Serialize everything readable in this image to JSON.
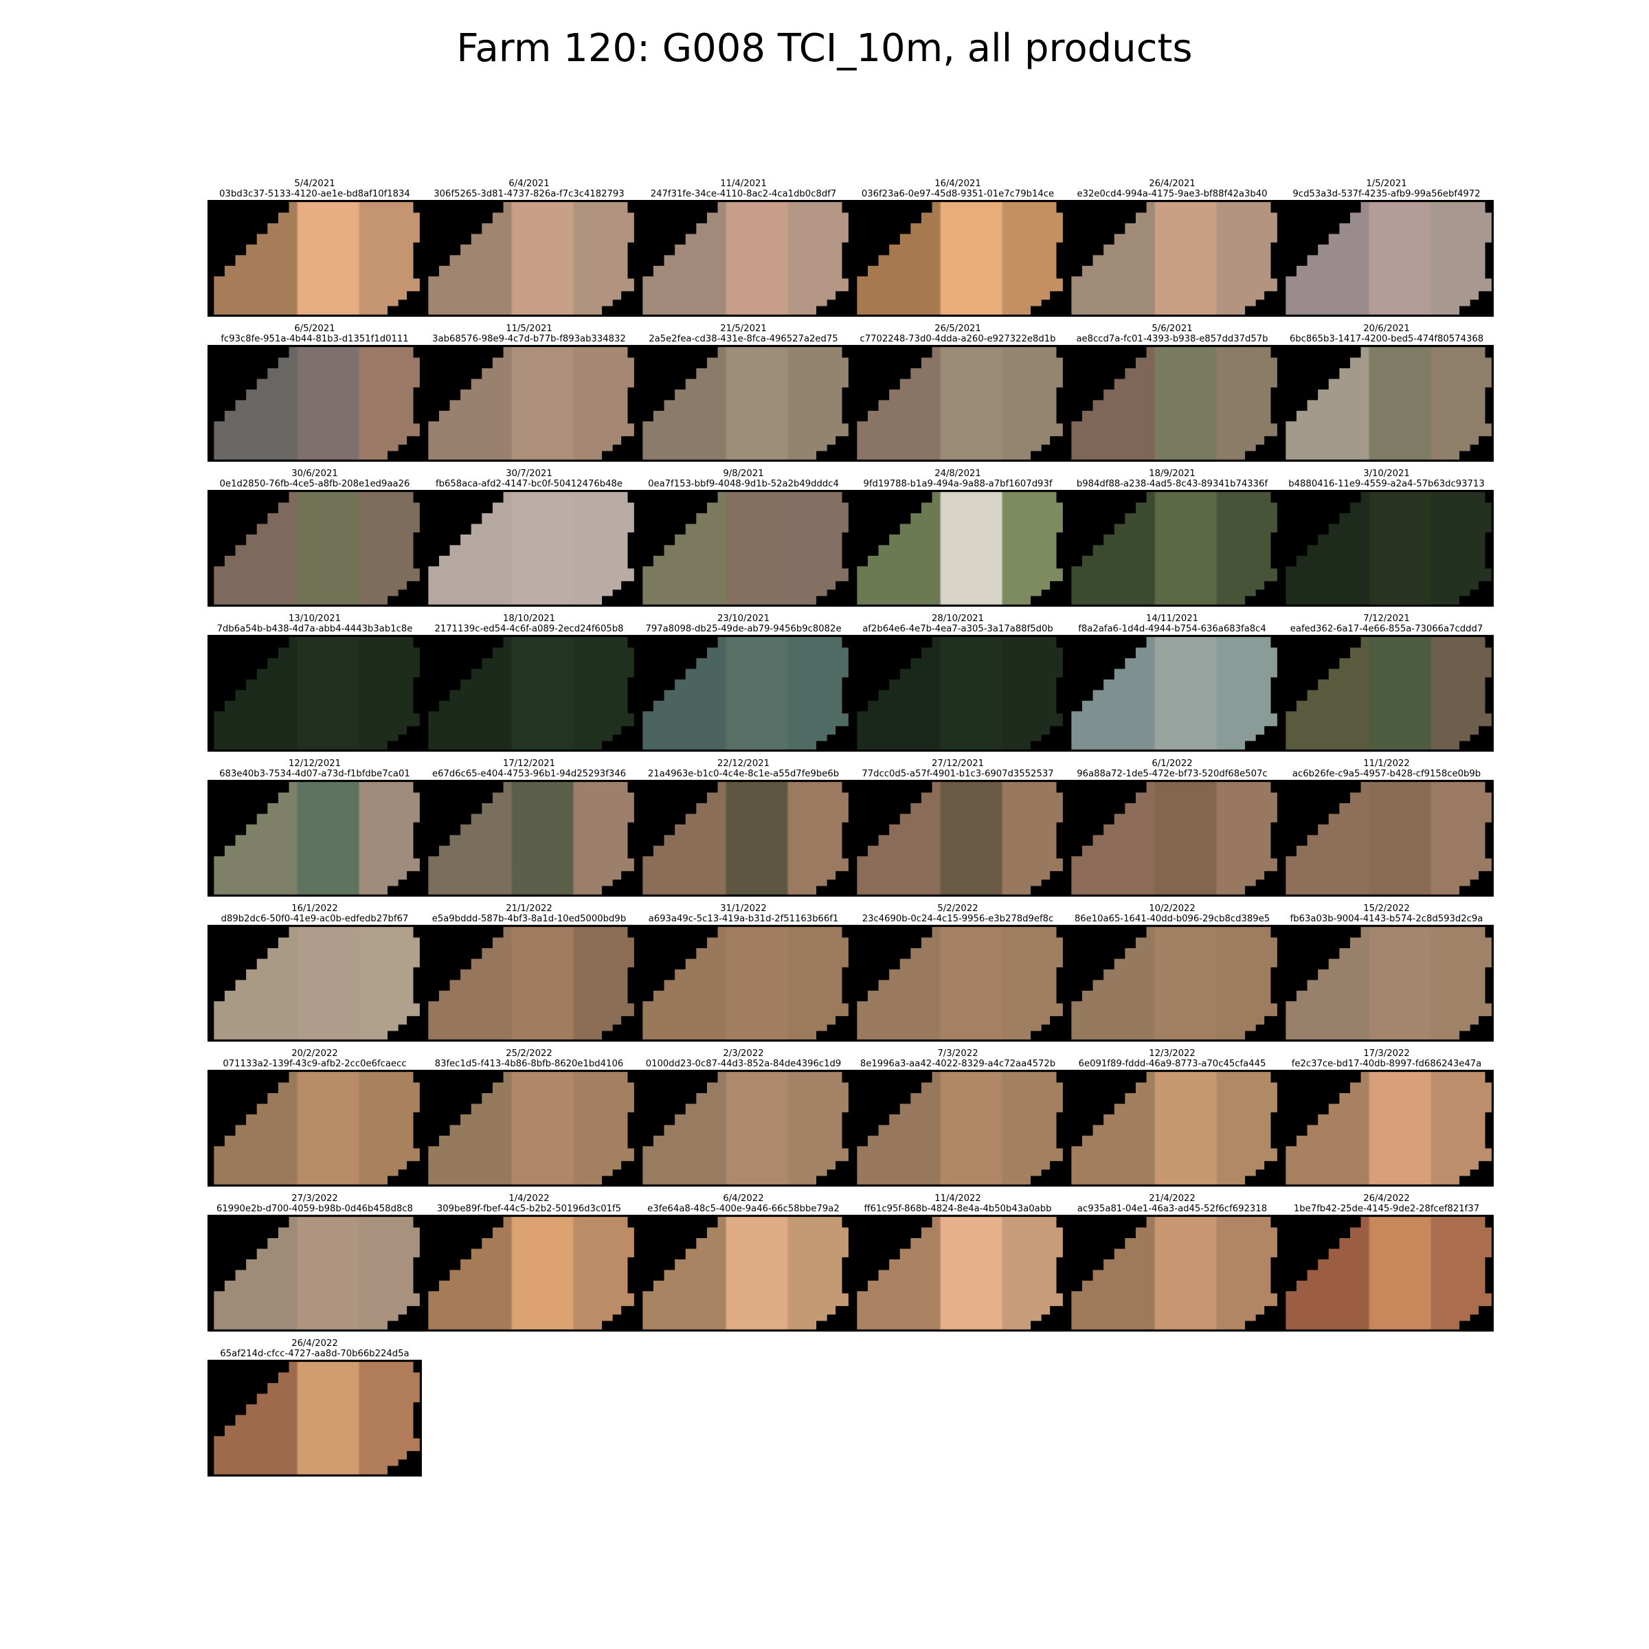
{
  "title": "Farm 120: G008 TCI_10m, all products",
  "panels": [
    {
      "date": "5/4/2021",
      "id": "03bd3c37-5133-4120-ae1e-bd8af10f1834",
      "colors": [
        "#a67d58",
        "#e6ae82",
        "#c49570"
      ]
    },
    {
      "date": "6/4/2021",
      "id": "306f5265-3d81-4737-826a-f7c3c4182793",
      "colors": [
        "#a08670",
        "#c8a088",
        "#b09480"
      ]
    },
    {
      "date": "11/4/2021",
      "id": "247f31fe-34ce-4110-8ac2-4ca1db0c8df7",
      "colors": [
        "#a18a7a",
        "#c69e8a",
        "#b39684"
      ]
    },
    {
      "date": "16/4/2021",
      "id": "036f23a6-0e97-45d8-9351-01e7c79b14ce",
      "colors": [
        "#a67a4e",
        "#e8ad78",
        "#c49062"
      ]
    },
    {
      "date": "26/4/2021",
      "id": "e32e0cd4-994a-4175-9ae3-bf88f42a3b40",
      "colors": [
        "#a08a78",
        "#c9a086",
        "#b39480"
      ]
    },
    {
      "date": "1/5/2021",
      "id": "9cd53a3d-537f-4235-afb9-99a56ebf4972",
      "colors": [
        "#9a8c8c",
        "#b49c98",
        "#a8988f"
      ]
    },
    {
      "date": "6/5/2021",
      "id": "fc93c8fe-951a-4b44-81b3-d1351f1d0111",
      "colors": [
        "#6a6664",
        "#7e706c",
        "#9a7a66"
      ]
    },
    {
      "date": "11/5/2021",
      "id": "3ab68576-98e9-4c7d-b77b-f893ab334832",
      "colors": [
        "#9a806e",
        "#ad907c",
        "#a48874"
      ]
    },
    {
      "date": "21/5/2021",
      "id": "2a5e2fea-cd38-431e-8fca-496527a2ed75",
      "colors": [
        "#8c7a6a",
        "#9c8e78",
        "#938470"
      ]
    },
    {
      "date": "26/5/2021",
      "id": "c7702248-73d0-4dda-a260-e927322e8d1b",
      "colors": [
        "#8a7466",
        "#9a8c76",
        "#948470"
      ]
    },
    {
      "date": "5/6/2021",
      "id": "ae8ccd7a-fc01-4393-b938-e857dd37d57b",
      "colors": [
        "#7e6658",
        "#7a7c62",
        "#8a7c66"
      ]
    },
    {
      "date": "20/6/2021",
      "id": "6bc865b3-1417-4200-bed5-474f80574368",
      "colors": [
        "#a49a8c",
        "#7e7c64",
        "#8e7e6a"
      ]
    },
    {
      "date": "30/6/2021",
      "id": "0e1d2850-76fb-4ce5-a8fb-208e1ed9aa26",
      "colors": [
        "#7e6a5c",
        "#727256",
        "#7e6c5c"
      ]
    },
    {
      "date": "30/7/2021",
      "id": "fb658aca-afd2-4147-bc0f-50412476b48e",
      "colors": [
        "#b4a8a0",
        "#bcaea6",
        "#b8aca4"
      ]
    },
    {
      "date": "9/8/2021",
      "id": "0ea7f153-bbf9-4048-9d1b-52a2b49dddc4",
      "colors": [
        "#7c7a5e",
        "#847060",
        "#847062"
      ]
    },
    {
      "date": "24/8/2021",
      "id": "9fd19788-b1a9-494a-9a88-a7bf1607d93f",
      "colors": [
        "#6c7a54",
        "#d8d4c8",
        "#7e8a60"
      ]
    },
    {
      "date": "18/9/2021",
      "id": "b984df88-a238-4ad5-8c43-89341b74336f",
      "colors": [
        "#3c4a30",
        "#5c6846",
        "#485438"
      ]
    },
    {
      "date": "3/10/2021",
      "id": "b4880416-11e9-4559-a2a4-57b63dc93713",
      "colors": [
        "#1e2a1c",
        "#28341f",
        "#243020"
      ]
    },
    {
      "date": "13/10/2021",
      "id": "7db6a54b-b438-4d7a-abb4-4443b3ab1c8e",
      "colors": [
        "#1c2a1c",
        "#223020",
        "#1e2c1c"
      ]
    },
    {
      "date": "18/10/2021",
      "id": "2171139c-ed54-4c6f-a089-2ecd24f605b8",
      "colors": [
        "#1c2a1c",
        "#243424",
        "#20301e"
      ]
    },
    {
      "date": "23/10/2021",
      "id": "797a8098-db25-49de-ab79-9456b9c8082e",
      "colors": [
        "#4c6460",
        "#567068",
        "#506a64"
      ]
    },
    {
      "date": "28/10/2021",
      "id": "af2b64e6-4e7b-4ea7-a305-3a17a88f5d0b",
      "colors": [
        "#1a281c",
        "#20301e",
        "#1e2c1e"
      ]
    },
    {
      "date": "14/11/2021",
      "id": "f8a2afa6-1d4d-4944-b754-636a683fa8c4",
      "colors": [
        "#7e9090",
        "#98a4a0",
        "#8a9c98"
      ]
    },
    {
      "date": "7/12/2021",
      "id": "eafed362-6a17-4e66-855a-73066a7cddd7",
      "colors": [
        "#5a5a3e",
        "#4e5c40",
        "#6e5e4c"
      ]
    },
    {
      "date": "12/12/2021",
      "id": "683e40b3-7534-4d07-a73d-f1bfdbe7ca01",
      "colors": [
        "#7e8068",
        "#5e7460",
        "#a08c7c"
      ]
    },
    {
      "date": "17/12/2021",
      "id": "e67d6c65-e404-4753-96b1-94d25293f346",
      "colors": [
        "#7a6e5c",
        "#5c604a",
        "#9c806c"
      ]
    },
    {
      "date": "22/12/2021",
      "id": "21a4963e-b1c0-4c4e-8c1e-a55d7fe9be6b",
      "colors": [
        "#8a6e58",
        "#5e5642",
        "#9c7a62"
      ]
    },
    {
      "date": "27/12/2021",
      "id": "77dcc0d5-a57f-4901-b1c3-6907d3552537",
      "colors": [
        "#8a6c58",
        "#6a5a46",
        "#98785e"
      ]
    },
    {
      "date": "6/1/2022",
      "id": "96a88a72-1de5-472e-bf73-520df68e507c",
      "colors": [
        "#8c6c58",
        "#84664f",
        "#987860"
      ]
    },
    {
      "date": "11/1/2022",
      "id": "ac6b26fe-c9a5-4957-b428-cf9158ce0b9b",
      "colors": [
        "#8e705a",
        "#8a6c55",
        "#9a7a62"
      ]
    },
    {
      "date": "16/1/2022",
      "id": "d89b2dc6-50f0-41e9-ac0b-edfedb27bf67",
      "colors": [
        "#a89a84",
        "#b09c8a",
        "#b0a08c"
      ]
    },
    {
      "date": "21/1/2022",
      "id": "e5a9bddd-587b-4bf3-8a1d-10ed5000bd9b",
      "colors": [
        "#96765c",
        "#a07c60",
        "#8c6e56"
      ]
    },
    {
      "date": "31/1/2022",
      "id": "a693a49c-5c13-419a-b31d-2f51163b66f1",
      "colors": [
        "#9a785c",
        "#a27e62",
        "#9c7a5e"
      ]
    },
    {
      "date": "5/2/2022",
      "id": "23c4690b-0c24-4c15-9956-e3b278d9ef8c",
      "colors": [
        "#9a7a5e",
        "#a68264",
        "#a07e62"
      ]
    },
    {
      "date": "10/2/2022",
      "id": "86e10a65-1641-40dd-b096-29cb8cd389e5",
      "colors": [
        "#967a60",
        "#a28064",
        "#9e7c60"
      ]
    },
    {
      "date": "15/2/2022",
      "id": "fb63a03b-9004-4143-b574-2c8d593d2c9a",
      "colors": [
        "#98806a",
        "#a4866e",
        "#a08268"
      ]
    },
    {
      "date": "20/2/2022",
      "id": "071133a2-139f-43c9-afb2-2cc0e6fcaecc",
      "colors": [
        "#9a7a5a",
        "#b88c66",
        "#a8825e"
      ]
    },
    {
      "date": "25/2/2022",
      "id": "83fec1d5-f413-4b86-8bfb-8620e1bd4106",
      "colors": [
        "#967a5e",
        "#b08868",
        "#a48062"
      ]
    },
    {
      "date": "2/3/2022",
      "id": "0100dd23-0c87-44d3-852a-84de4396c1d9",
      "colors": [
        "#987c62",
        "#ae8a6c",
        "#a48266"
      ]
    },
    {
      "date": "7/3/2022",
      "id": "8e1996a3-aa42-4022-8329-a4c72aa4572b",
      "colors": [
        "#98785c",
        "#b08866",
        "#a28060"
      ]
    },
    {
      "date": "12/3/2022",
      "id": "6e091f89-fddd-46a9-8773-a70c45cfa445",
      "colors": [
        "#a07e5e",
        "#c89870",
        "#b08a66"
      ]
    },
    {
      "date": "17/3/2022",
      "id": "fe2c37ce-bd17-40db-8997-fd686243e47a",
      "colors": [
        "#a88260",
        "#d8a07a",
        "#bc8e6c"
      ]
    },
    {
      "date": "27/3/2022",
      "id": "61990e2b-d700-4059-b98b-0d46b458d8c8",
      "colors": [
        "#9e8c78",
        "#b09680",
        "#a8927e"
      ]
    },
    {
      "date": "1/4/2022",
      "id": "309be89f-fbef-44c5-b2b2-50196d3c01f5",
      "colors": [
        "#a67c58",
        "#dca272",
        "#bc8c66"
      ]
    },
    {
      "date": "6/4/2022",
      "id": "e3fe64a8-48c5-400e-9a46-66c58bbe79a2",
      "colors": [
        "#a88462",
        "#e0ac86",
        "#c49a74"
      ]
    },
    {
      "date": "11/4/2022",
      "id": "ff61c95f-868b-4824-8e4a-4b50b43a0abb",
      "colors": [
        "#aa8262",
        "#e6b08a",
        "#c89c78"
      ]
    },
    {
      "date": "21/4/2022",
      "id": "ac935a81-04e1-46a3-ad45-52f6cf692318",
      "colors": [
        "#9e7a5a",
        "#c89670",
        "#b28664"
      ]
    },
    {
      "date": "26/4/2022",
      "id": "1be7fb42-25de-4145-9de2-28fcef821f37",
      "colors": [
        "#9c5e42",
        "#c8885c",
        "#aa6e4e"
      ]
    },
    {
      "date": "26/4/2022",
      "id": "65af214d-cfcc-4727-aa8d-70b66b224d5a",
      "colors": [
        "#9e6a4c",
        "#d09c70",
        "#b07c5a"
      ]
    }
  ]
}
